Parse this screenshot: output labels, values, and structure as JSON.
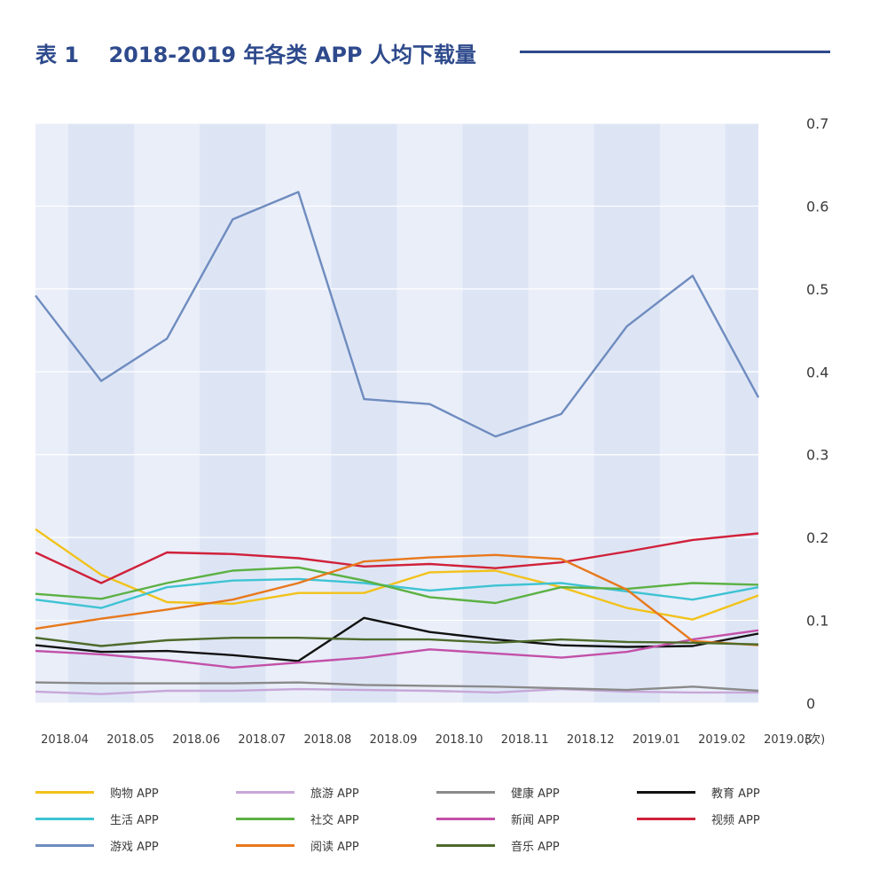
{
  "page": {
    "title": "表 1    2018-2019 年各类 APP 人均下载量"
  },
  "colors": {
    "title": "#2e4a8c",
    "plot_bg": "#e9eef9",
    "plot_band": "#dde5f5",
    "grid": "#ffffff"
  },
  "chart_data": {
    "type": "line",
    "title": "2018-2019 年各类 APP 人均下载量",
    "x": [
      "2018.04",
      "2018.05",
      "2018.06",
      "2018.07",
      "2018.08",
      "2018.09",
      "2018.10",
      "2018.11",
      "2018.12",
      "2019.01",
      "2019.02",
      "2019.03"
    ],
    "y_ticks": [
      "0",
      "0.1",
      "0.2",
      "0.3",
      "0.4",
      "0.5",
      "0.6",
      "0.7"
    ],
    "ylim": [
      0,
      0.7
    ],
    "yunit": "(次)",
    "grid": true,
    "legend_position": "bottom",
    "series": [
      {
        "name": "购物 APP",
        "color": "#f2c21a",
        "values": [
          0.21,
          0.155,
          0.122,
          0.12,
          0.133,
          0.133,
          0.158,
          0.16,
          0.14,
          0.115,
          0.101,
          0.13
        ]
      },
      {
        "name": "旅游 APP",
        "color": "#c7a7d8",
        "values": [
          0.014,
          0.011,
          0.015,
          0.015,
          0.017,
          0.016,
          0.015,
          0.013,
          0.017,
          0.014,
          0.013,
          0.013
        ]
      },
      {
        "name": "健康 APP",
        "color": "#8a8a8a",
        "values": [
          0.025,
          0.024,
          0.024,
          0.024,
          0.025,
          0.022,
          0.021,
          0.02,
          0.018,
          0.016,
          0.02,
          0.015
        ]
      },
      {
        "name": "教育 APP",
        "color": "#111111",
        "values": [
          0.07,
          0.062,
          0.063,
          0.058,
          0.051,
          0.103,
          0.086,
          0.077,
          0.07,
          0.068,
          0.069,
          0.084
        ]
      },
      {
        "name": "生活 APP",
        "color": "#3ec3d3",
        "values": [
          0.125,
          0.115,
          0.14,
          0.148,
          0.15,
          0.145,
          0.136,
          0.142,
          0.145,
          0.135,
          0.125,
          0.14
        ]
      },
      {
        "name": "社交 APP",
        "color": "#5cb143",
        "values": [
          0.132,
          0.126,
          0.145,
          0.16,
          0.164,
          0.148,
          0.128,
          0.121,
          0.14,
          0.138,
          0.145,
          0.143
        ]
      },
      {
        "name": "新闻 APP",
        "color": "#c350a8",
        "values": [
          0.063,
          0.059,
          0.052,
          0.043,
          0.049,
          0.055,
          0.065,
          0.06,
          0.055,
          0.062,
          0.077,
          0.088
        ]
      },
      {
        "name": "视频 APP",
        "color": "#d0213b",
        "values": [
          0.182,
          0.145,
          0.182,
          0.18,
          0.175,
          0.165,
          0.168,
          0.163,
          0.17,
          0.183,
          0.197,
          0.205
        ]
      },
      {
        "name": "游戏 APP",
        "color": "#6f8cbf",
        "values": [
          0.492,
          0.389,
          0.44,
          0.584,
          0.617,
          0.367,
          0.361,
          0.322,
          0.349,
          0.455,
          0.516,
          0.369
        ]
      },
      {
        "name": "阅读 APP",
        "color": "#e8781c",
        "values": [
          0.09,
          0.102,
          0.113,
          0.125,
          0.145,
          0.171,
          0.176,
          0.179,
          0.174,
          0.137,
          0.075,
          0.07
        ]
      },
      {
        "name": "音乐 APP",
        "color": "#4d6a2a",
        "values": [
          0.079,
          0.069,
          0.076,
          0.079,
          0.079,
          0.077,
          0.077,
          0.073,
          0.077,
          0.074,
          0.073,
          0.071
        ]
      }
    ]
  }
}
